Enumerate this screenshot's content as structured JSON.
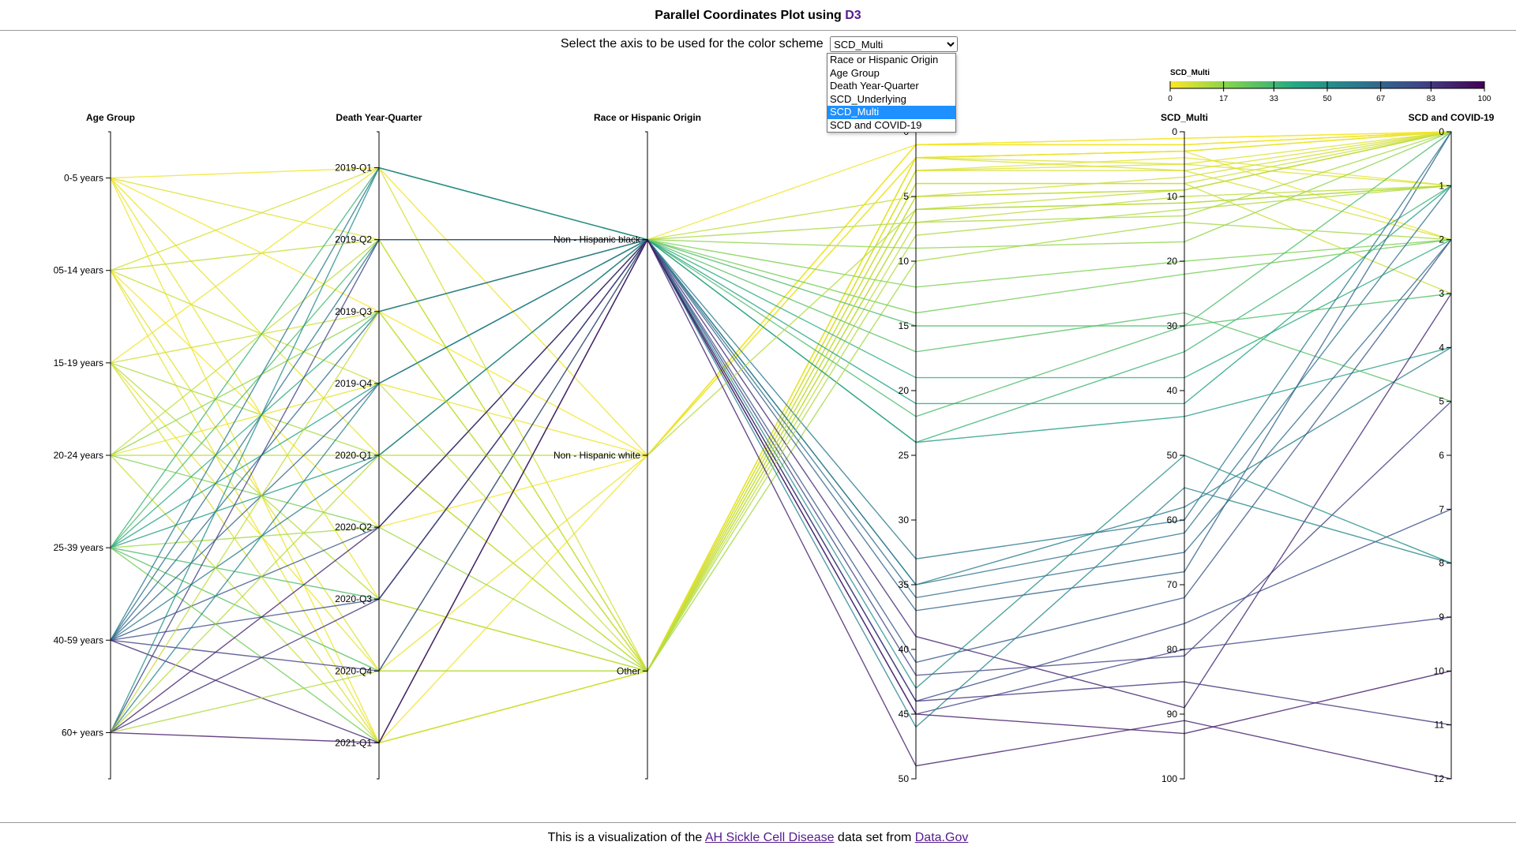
{
  "header": {
    "title_prefix": "Parallel Coordinates Plot using ",
    "title_link": "D3"
  },
  "selector": {
    "label": "Select the axis to be used for the color scheme",
    "selected": "SCD_Multi",
    "options": [
      "Race or Hispanic Origin",
      "Age Group",
      "Death Year-Quarter",
      "SCD_Underlying",
      "SCD_Multi",
      "SCD and COVID-19"
    ]
  },
  "footer": {
    "text_before": "This is a visualization of the ",
    "dataset_link": "AH Sickle Cell Disease",
    "text_middle": " data set from ",
    "source_link": "Data.Gov"
  },
  "colors": {
    "palette": [
      "#fde725",
      "#7ad151",
      "#22a884",
      "#2a788e",
      "#414487",
      "#440154"
    ]
  },
  "chart_data": {
    "type": "parallel-coordinates",
    "color_axis": "SCD_Multi",
    "legend": {
      "title": "SCD_Multi",
      "ticks": [
        "0",
        "17",
        "33",
        "50",
        "67",
        "83",
        "100"
      ],
      "domain": [
        0,
        100
      ],
      "placement": "top-right"
    },
    "axes": [
      {
        "name": "Age Group",
        "kind": "categorical",
        "categories": [
          "0-5 years",
          "05-14 years",
          "15-19 years",
          "20-24 years",
          "25-39 years",
          "40-59 years",
          "60+ years"
        ]
      },
      {
        "name": "Death Year-Quarter",
        "kind": "categorical",
        "categories": [
          "2019-Q1",
          "2019-Q2",
          "2019-Q3",
          "2019-Q4",
          "2020-Q1",
          "2020-Q2",
          "2020-Q3",
          "2020-Q4",
          "2021-Q1"
        ]
      },
      {
        "name": "Race or Hispanic Origin",
        "kind": "categorical",
        "categories": [
          "Non - Hispanic black",
          "Non - Hispanic white",
          "Other"
        ]
      },
      {
        "name": "",
        "kind": "numeric",
        "domain": [
          0,
          50
        ],
        "ticks": [
          0,
          5,
          10,
          15,
          20,
          25,
          30,
          35,
          40,
          45,
          50
        ]
      },
      {
        "name": "SCD_Multi",
        "kind": "numeric",
        "domain": [
          0,
          100
        ],
        "ticks": [
          0,
          10,
          20,
          30,
          40,
          50,
          60,
          70,
          80,
          90,
          100
        ]
      },
      {
        "name": "SCD and COVID-19",
        "kind": "numeric",
        "domain": [
          0,
          12
        ],
        "ticks": [
          0,
          1,
          2,
          3,
          4,
          5,
          6,
          7,
          8,
          9,
          10,
          11,
          12
        ]
      }
    ],
    "records": [
      [
        "0-5 years",
        "2019-Q1",
        "Non - Hispanic black",
        1,
        2,
        0
      ],
      [
        "0-5 years",
        "2019-Q2",
        "Other",
        2,
        5,
        0
      ],
      [
        "0-5 years",
        "2019-Q3",
        "Non - Hispanic white",
        1,
        1,
        0
      ],
      [
        "0-5 years",
        "2020-Q1",
        "Other",
        3,
        4,
        1
      ],
      [
        "0-5 years",
        "2020-Q3",
        "Other",
        2,
        3,
        0
      ],
      [
        "0-5 years",
        "2021-Q1",
        "Non - Hispanic white",
        1,
        2,
        0
      ],
      [
        "05-14 years",
        "2019-Q1",
        "Other",
        2,
        6,
        0
      ],
      [
        "05-14 years",
        "2019-Q2",
        "Non - Hispanic black",
        5,
        9,
        0
      ],
      [
        "05-14 years",
        "2019-Q4",
        "Other",
        4,
        8,
        0
      ],
      [
        "05-14 years",
        "2020-Q2",
        "Non - Hispanic white",
        1,
        1,
        0
      ],
      [
        "05-14 years",
        "2020-Q4",
        "Other",
        3,
        5,
        1
      ],
      [
        "05-14 years",
        "2021-Q1",
        "Other",
        2,
        3,
        2
      ],
      [
        "15-19 years",
        "2019-Q1",
        "Non - Hispanic white",
        1,
        2,
        0
      ],
      [
        "15-19 years",
        "2019-Q3",
        "Other",
        5,
        7,
        0
      ],
      [
        "15-19 years",
        "2020-Q1",
        "Non - Hispanic black",
        7,
        13,
        0
      ],
      [
        "15-19 years",
        "2020-Q3",
        "Other",
        6,
        11,
        1
      ],
      [
        "15-19 years",
        "2020-Q4",
        "Non - Hispanic white",
        2,
        3,
        0
      ],
      [
        "15-19 years",
        "2021-Q1",
        "Other",
        3,
        6,
        2
      ],
      [
        "20-24 years",
        "2019-Q2",
        "Other",
        6,
        9,
        0
      ],
      [
        "20-24 years",
        "2019-Q3",
        "Non - Hispanic black",
        9,
        17,
        0
      ],
      [
        "20-24 years",
        "2019-Q4",
        "Non - Hispanic white",
        2,
        3,
        0
      ],
      [
        "20-24 years",
        "2020-Q1",
        "Other",
        7,
        10,
        1
      ],
      [
        "20-24 years",
        "2020-Q2",
        "Non - Hispanic black",
        12,
        20,
        2
      ],
      [
        "20-24 years",
        "2021-Q1",
        "Other",
        4,
        8,
        3
      ],
      [
        "25-39 years",
        "2019-Q1",
        "Non - Hispanic black",
        24,
        34,
        1
      ],
      [
        "25-39 years",
        "2019-Q2",
        "Non - Hispanic black",
        22,
        30,
        0
      ],
      [
        "25-39 years",
        "2019-Q3",
        "Non - Hispanic black",
        19,
        38,
        2
      ],
      [
        "25-39 years",
        "2019-Q4",
        "Non - Hispanic black",
        21,
        42,
        1
      ],
      [
        "25-39 years",
        "2020-Q1",
        "Non - Hispanic black",
        24,
        44,
        4
      ],
      [
        "25-39 years",
        "2020-Q2",
        "Other",
        10,
        14,
        2
      ],
      [
        "25-39 years",
        "2020-Q3",
        "Non - Hispanic black",
        15,
        30,
        3
      ],
      [
        "25-39 years",
        "2020-Q4",
        "Non - Hispanic black",
        17,
        28,
        5
      ],
      [
        "25-39 years",
        "2021-Q1",
        "Non - Hispanic black",
        14,
        22,
        2
      ],
      [
        "40-59 years",
        "2019-Q1",
        "Non - Hispanic black",
        33,
        60,
        0
      ],
      [
        "40-59 years",
        "2019-Q2",
        "Non - Hispanic black",
        35,
        62,
        1
      ],
      [
        "40-59 years",
        "2019-Q3",
        "Non - Hispanic black",
        36,
        65,
        2
      ],
      [
        "40-59 years",
        "2019-Q4",
        "Non - Hispanic black",
        37,
        68,
        0
      ],
      [
        "40-59 years",
        "2020-Q1",
        "Non - Hispanic black",
        35,
        58,
        4
      ],
      [
        "40-59 years",
        "2020-Q2",
        "Non - Hispanic black",
        41,
        72,
        2
      ],
      [
        "40-59 years",
        "2020-Q3",
        "Non - Hispanic black",
        44,
        76,
        7
      ],
      [
        "40-59 years",
        "2020-Q4",
        "Non - Hispanic black",
        42,
        81,
        5
      ],
      [
        "40-59 years",
        "2021-Q1",
        "Non - Hispanic black",
        39,
        89,
        3
      ],
      [
        "60+ years",
        "2019-Q1",
        "Non - Hispanic black",
        43,
        50,
        8
      ],
      [
        "60+ years",
        "2019-Q2",
        "Non - Hispanic black",
        45,
        80,
        9
      ],
      [
        "60+ years",
        "2019-Q3",
        "Other",
        5,
        9,
        0
      ],
      [
        "60+ years",
        "2019-Q4",
        "Non - Hispanic black",
        46,
        55,
        8
      ],
      [
        "60+ years",
        "2020-Q1",
        "Non - Hispanic white",
        6,
        11,
        1
      ],
      [
        "60+ years",
        "2020-Q2",
        "Non - Hispanic black",
        49,
        91,
        12
      ],
      [
        "60+ years",
        "2020-Q3",
        "Non - Hispanic black",
        44,
        85,
        11
      ],
      [
        "60+ years",
        "2020-Q4",
        "Other",
        8,
        12,
        1
      ],
      [
        "60+ years",
        "2021-Q1",
        "Non - Hispanic black",
        45,
        93,
        10
      ]
    ]
  }
}
